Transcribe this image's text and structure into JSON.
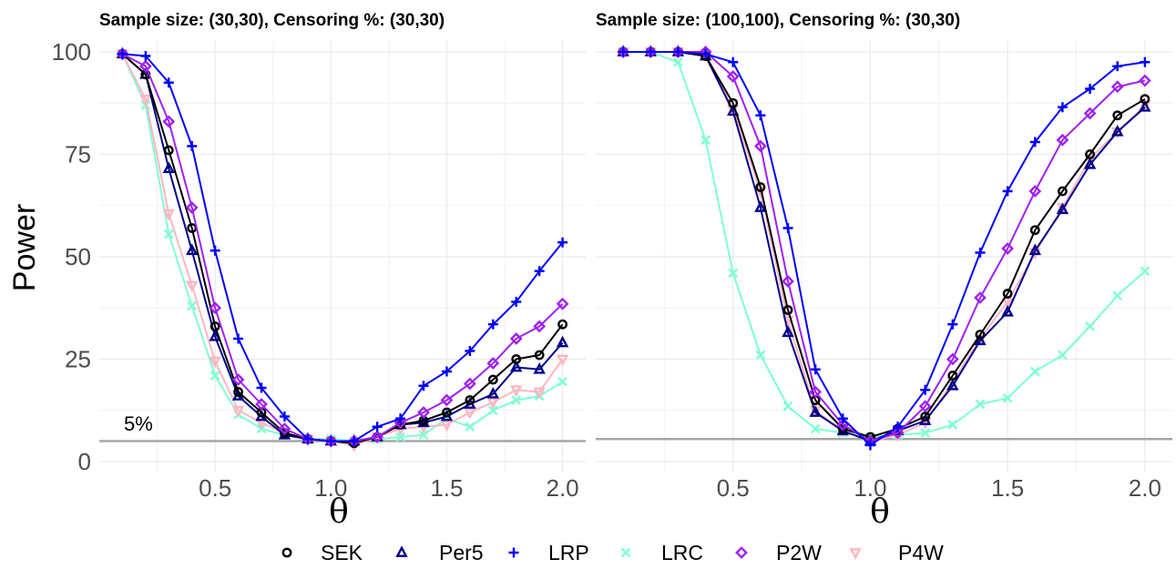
{
  "chart_data": {
    "type": "line",
    "ylabel": "Power",
    "xlabel": "θ",
    "ylim": [
      0,
      100
    ],
    "xlim": [
      0.1,
      2.0
    ],
    "yticks": [
      0,
      25,
      50,
      75,
      100
    ],
    "xticks": [
      0.5,
      1.0,
      1.5,
      2.0
    ],
    "xtick_labels": [
      "0.5",
      "1.0",
      "1.5",
      "2.0"
    ],
    "grid": true,
    "legend_position": "bottom",
    "series_styles": [
      {
        "name": "SEK",
        "color": "#000000",
        "marker": "circle"
      },
      {
        "name": "Per5",
        "color": "#00008B",
        "marker": "triangle"
      },
      {
        "name": "LRP",
        "color": "#0000FF",
        "marker": "plus"
      },
      {
        "name": "LRC",
        "color": "#7FFFD4",
        "marker": "cross"
      },
      {
        "name": "P2W",
        "color": "#A020F0",
        "marker": "diamond"
      },
      {
        "name": "P4W",
        "color": "#FFB6C1",
        "marker": "triangle-down"
      }
    ],
    "x": [
      0.1,
      0.2,
      0.3,
      0.4,
      0.5,
      0.6,
      0.7,
      0.8,
      0.9,
      1.0,
      1.1,
      1.2,
      1.3,
      1.4,
      1.5,
      1.6,
      1.7,
      1.8,
      1.9,
      2.0
    ],
    "panels": [
      {
        "title": "Sample size: (30,30), Censoring %: (30,30)",
        "reference_line": {
          "y": 5,
          "label": "5%"
        },
        "series": [
          {
            "name": "SEK",
            "values": [
              99.5,
              94.5,
              76,
              57,
              33,
              17,
              12,
              7,
              5.5,
              5,
              4.5,
              6,
              9,
              10,
              12,
              15,
              20,
              25,
              26,
              33.5
            ]
          },
          {
            "name": "Per5",
            "values": [
              99.5,
              94.5,
              71.5,
              51.5,
              30.5,
              16,
              11,
              6.5,
              5.5,
              5,
              5,
              6,
              9,
              9.5,
              11,
              14,
              16.5,
              23,
              22.5,
              29
            ]
          },
          {
            "name": "LRP",
            "values": [
              99.5,
              99,
              92.5,
              77,
              51.5,
              30,
              18,
              11,
              5.5,
              5,
              5,
              8.5,
              10.5,
              18.5,
              22,
              27,
              33.5,
              39,
              46.5,
              53.5
            ]
          },
          {
            "name": "LRC",
            "values": [
              99.5,
              87,
              55.5,
              38,
              21,
              11.5,
              8,
              6.5,
              5.5,
              5.5,
              5,
              5.5,
              6,
              6.5,
              10.5,
              8.5,
              12.5,
              15,
              16,
              19.5
            ]
          },
          {
            "name": "P2W",
            "values": [
              99.5,
              96.5,
              83,
              62,
              37.5,
              20,
              14,
              8,
              5.5,
              5,
              5,
              6,
              9.5,
              12,
              15,
              19,
              24,
              30,
              33,
              38.5
            ]
          },
          {
            "name": "P4W",
            "values": [
              99.5,
              88.5,
              60.5,
              43,
              24.5,
              12.5,
              9.5,
              7,
              5.5,
              5,
              4,
              6,
              8,
              8.5,
              9,
              12,
              14.5,
              17.5,
              17,
              25
            ]
          }
        ]
      },
      {
        "title": "Sample size: (100,100), Censoring %: (30,30)",
        "reference_line": {
          "y": 5.5,
          "label": ""
        },
        "series": [
          {
            "name": "SEK",
            "values": [
              100,
              100,
              100,
              99,
              87.5,
              67,
              37,
              15,
              8,
              6,
              8,
              11,
              21,
              31,
              41,
              56.5,
              66,
              75,
              84.5,
              88.5
            ]
          },
          {
            "name": "Per5",
            "values": [
              100,
              100,
              100,
              99,
              85.5,
              62,
              31.5,
              12,
              7.5,
              5,
              7.5,
              10,
              18.5,
              29.5,
              36.5,
              51.5,
              61.5,
              72.5,
              80.5,
              86.5
            ]
          },
          {
            "name": "LRP",
            "values": [
              100,
              100,
              100,
              99.5,
              97.5,
              84.5,
              57,
              22.5,
              10.5,
              4,
              8.5,
              17.5,
              33.5,
              51,
              66,
              78,
              86.5,
              91,
              96.5,
              97.5
            ]
          },
          {
            "name": "LRC",
            "values": [
              100,
              100,
              97.5,
              78.5,
              46,
              26,
              13.5,
              8,
              7,
              6,
              6.5,
              7,
              9,
              14,
              15.5,
              22,
              26,
              33,
              40.5,
              46.5
            ]
          },
          {
            "name": "P2W",
            "values": [
              100,
              100,
              100,
              100,
              94,
              77,
              44,
              17,
              9,
              5,
              7,
              13.5,
              25,
              40,
              52,
              66,
              78.5,
              85,
              91.5,
              93
            ]
          },
          {
            "name": "P4W",
            "values": [
              100,
              100,
              100,
              99.5,
              86,
              66,
              34.5,
              12.5,
              7.5,
              5,
              6.5,
              9.5,
              19.5,
              30,
              39,
              51,
              62,
              74,
              80.5,
              87
            ]
          }
        ]
      }
    ]
  }
}
